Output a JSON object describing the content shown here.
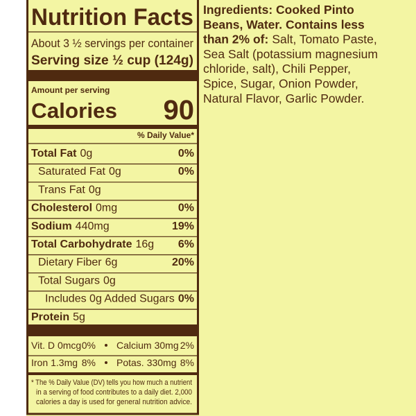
{
  "nutrition": {
    "title": "Nutrition Facts",
    "servings": "About 3 ½ servings per container",
    "serving_size_label": "Serving size",
    "serving_size": "½ cup (124g)",
    "amount_per_serving": "Amount per serving",
    "calories_label": "Calories",
    "calories": "90",
    "dv_header": "% Daily Value*",
    "rows": [
      {
        "label": "Total Fat",
        "amount": "0g",
        "dv": "0%"
      },
      {
        "label": "Saturated Fat",
        "amount": "0g",
        "dv": "0%"
      },
      {
        "label": "Trans Fat",
        "amount": "0g"
      },
      {
        "label": "Cholesterol",
        "amount": "0mg",
        "dv": "0%"
      },
      {
        "label": "Sodium",
        "amount": "440mg",
        "dv": "19%"
      },
      {
        "label": "Total Carbohydrate",
        "amount": "16g",
        "dv": "6%"
      },
      {
        "label": "Dietary Fiber",
        "amount": "6g",
        "dv": "20%"
      },
      {
        "label": "Total Sugars",
        "amount": "0g"
      },
      {
        "label": "Includes 0g Added Sugars",
        "dv": "0%"
      },
      {
        "label": "Protein",
        "amount": "5g"
      }
    ],
    "vitamins": [
      [
        {
          "name": "Vit. D",
          "amount": "0mcg",
          "dv": "0%"
        },
        {
          "name": "Calcium",
          "amount": "30mg",
          "dv": "2%"
        }
      ],
      [
        {
          "name": "Iron",
          "amount": "1.3mg",
          "dv": "8%"
        },
        {
          "name": "Potas.",
          "amount": "330mg",
          "dv": "8%"
        }
      ]
    ],
    "footnote": [
      "* The % Daily Value (DV) tells you how much a nutrient",
      "in a serving of food contributes to a daily diet. 2,000",
      "calories a day is used for general nutrition advice."
    ]
  },
  "ingredients": {
    "lines": [
      {
        "bold": "Ingredients: Cooked Pinto"
      },
      {
        "bold": "Beans, Water. Contains less"
      },
      {
        "bold": "than 2% of:",
        "text": "Salt, Tomato Paste,"
      },
      {
        "text": "Sea Salt (potassium magnesium"
      },
      {
        "text": "chloride, salt), Chili Pepper,"
      },
      {
        "text": "Spice, Sugar, Onion Powder,"
      },
      {
        "text": "Natural Flavor, Garlic Powder."
      }
    ]
  }
}
